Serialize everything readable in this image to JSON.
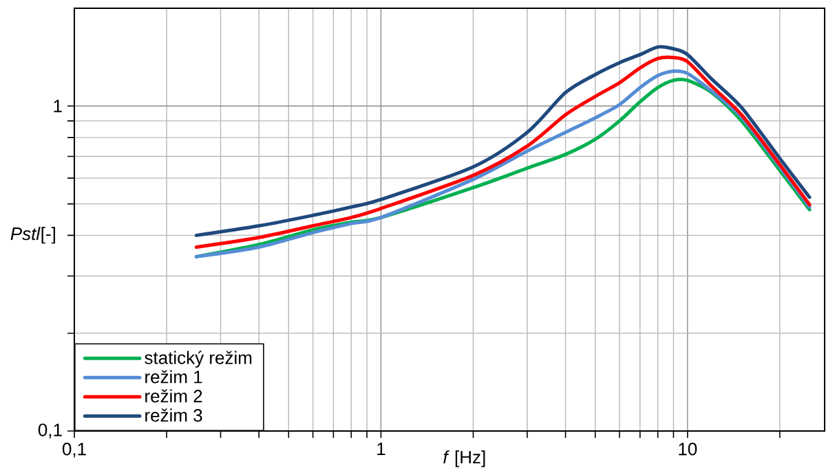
{
  "chart_data": {
    "type": "line",
    "xlabel": "*f* [Hz]",
    "ylabel": "*Pstl*[-]",
    "log": "xy",
    "grid": true,
    "legend": "bottom left",
    "xlim": [
      0.1,
      28
    ],
    "ylim": [
      0.1,
      2
    ],
    "xticks": [
      {
        "value": 0.1,
        "label": "0,1"
      },
      1,
      10
    ],
    "yticks": [
      {
        "value": 0.1,
        "label": "0,1"
      },
      1
    ],
    "x": [
      0.25,
      0.4,
      0.6,
      0.8,
      1,
      2,
      3,
      4,
      5,
      6,
      7,
      8,
      9,
      10,
      12,
      15,
      20,
      25
    ],
    "series": [
      {
        "name": "statický režim",
        "color": "#00b050",
        "values": [
          0.344,
          0.375,
          0.416,
          0.439,
          0.454,
          0.561,
          0.644,
          0.71,
          0.79,
          0.9,
          1.03,
          1.14,
          1.2,
          1.2,
          1.1,
          0.9,
          0.634,
          0.48
        ]
      },
      {
        "name": "režim 1",
        "color": "#558ed5",
        "values": [
          0.344,
          0.368,
          0.408,
          0.435,
          0.454,
          0.595,
          0.727,
          0.83,
          0.92,
          1.01,
          1.14,
          1.24,
          1.28,
          1.26,
          1.11,
          0.925,
          0.65,
          0.489
        ]
      },
      {
        "name": "režim 2",
        "color": "#ff0000",
        "values": [
          0.368,
          0.394,
          0.428,
          0.454,
          0.484,
          0.612,
          0.753,
          0.94,
          1.07,
          1.18,
          1.31,
          1.4,
          1.41,
          1.37,
          1.15,
          0.94,
          0.66,
          0.497
        ]
      },
      {
        "name": "režim 3",
        "color": "#1f497d",
        "values": [
          0.4,
          0.428,
          0.461,
          0.489,
          0.516,
          0.65,
          0.83,
          1.1,
          1.25,
          1.36,
          1.44,
          1.52,
          1.5,
          1.44,
          1.21,
          0.99,
          0.69,
          0.524
        ]
      }
    ]
  }
}
